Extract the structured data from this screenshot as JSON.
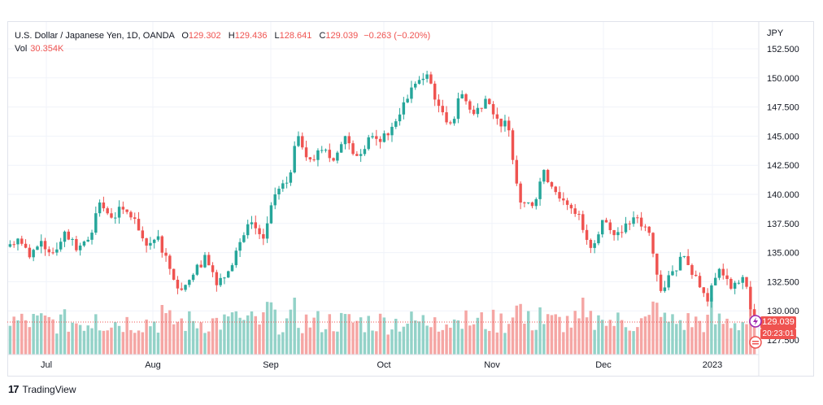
{
  "legend": {
    "symbol": "U.S. Dollar / Japanese Yen, 1D, OANDA",
    "open_label": "O",
    "open": "129.302",
    "high_label": "H",
    "high": "129.436",
    "low_label": "L",
    "low": "128.641",
    "close_label": "C",
    "close": "129.039",
    "change": "−0.263 (−0.20%)",
    "vol_label": "Vol",
    "vol": "30.354K"
  },
  "currency": "JPY",
  "last_price": "129.039",
  "countdown": "20:23:01",
  "brand": "TradingView",
  "colors": {
    "up": "#26a69a",
    "down": "#ef5350",
    "up_vol": "#93d2c8",
    "down_vol": "#f5a6a4",
    "grid": "#f0f3fa"
  },
  "chart_data": {
    "type": "candlestick",
    "instrument": "U.S. Dollar / Japanese Yen",
    "timeframe": "1D",
    "y_ticks": [
      "152.500",
      "150.000",
      "147.500",
      "145.000",
      "142.500",
      "140.000",
      "137.500",
      "135.000",
      "132.500",
      "130.000",
      "127.500"
    ],
    "x_ticks": [
      "Jul",
      "Aug",
      "Sep",
      "Oct",
      "Nov",
      "Dec",
      "2023"
    ],
    "ylim": [
      126.3,
      153.4
    ],
    "grid": true,
    "segments": [
      [
        135.5,
        136.2
      ],
      [
        136.2,
        134.6
      ],
      [
        134.6,
        136.0
      ],
      [
        136.0,
        135.0
      ],
      [
        135.0,
        136.8
      ],
      [
        136.8,
        135.2
      ],
      [
        135.2,
        136.1
      ],
      [
        136.1,
        139.3
      ],
      [
        139.3,
        138.0
      ],
      [
        138.0,
        138.7
      ],
      [
        138.7,
        137.9
      ],
      [
        137.9,
        135.6
      ],
      [
        135.6,
        136.4
      ],
      [
        136.4,
        133.6
      ],
      [
        133.6,
        131.8
      ],
      [
        131.8,
        133.1
      ],
      [
        133.1,
        134.8
      ],
      [
        134.8,
        132.2
      ],
      [
        132.2,
        133.4
      ],
      [
        133.4,
        135.9
      ],
      [
        135.9,
        137.6
      ],
      [
        137.6,
        136.2
      ],
      [
        136.2,
        140.0
      ],
      [
        140.0,
        141.0
      ],
      [
        141.0,
        145.0
      ],
      [
        145.0,
        143.0
      ],
      [
        143.0,
        143.8
      ],
      [
        143.8,
        142.9
      ],
      [
        142.9,
        145.0
      ],
      [
        145.0,
        143.3
      ],
      [
        143.3,
        144.9
      ],
      [
        144.9,
        144.5
      ],
      [
        144.5,
        145.8
      ],
      [
        145.8,
        147.9
      ],
      [
        147.9,
        149.5
      ],
      [
        149.5,
        150.3
      ],
      [
        150.3,
        147.6
      ],
      [
        147.6,
        146.1
      ],
      [
        146.1,
        148.6
      ],
      [
        148.6,
        146.9
      ],
      [
        146.9,
        148.2
      ],
      [
        148.2,
        146.5
      ],
      [
        146.5,
        145.5
      ],
      [
        145.5,
        139.3
      ],
      [
        139.3,
        139.0
      ],
      [
        139.0,
        142.1
      ],
      [
        142.1,
        140.2
      ],
      [
        140.2,
        139.1
      ],
      [
        139.1,
        138.3
      ],
      [
        138.3,
        135.4
      ],
      [
        135.4,
        137.8
      ],
      [
        137.8,
        136.5
      ],
      [
        136.5,
        137.5
      ],
      [
        137.5,
        138.0
      ],
      [
        138.0,
        136.7
      ],
      [
        136.7,
        131.7
      ],
      [
        131.7,
        133.4
      ],
      [
        133.4,
        134.7
      ],
      [
        134.7,
        133.0
      ],
      [
        133.0,
        130.8
      ],
      [
        130.8,
        133.6
      ],
      [
        133.6,
        131.9
      ],
      [
        131.9,
        132.9
      ],
      [
        132.9,
        129.039
      ]
    ]
  }
}
